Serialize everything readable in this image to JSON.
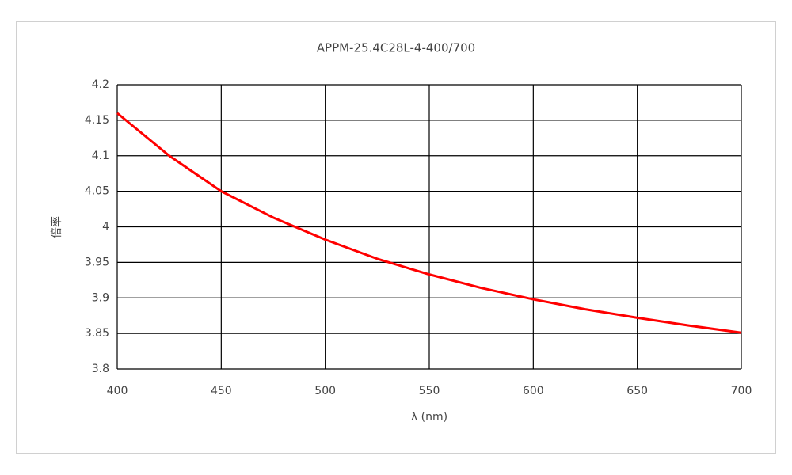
{
  "chart_data": {
    "type": "line",
    "title": "APPM-25.4C28L-4-400/700",
    "x_label": "λ (nm)",
    "y_label": "倍率",
    "x": [
      400,
      425,
      450,
      475,
      500,
      525,
      550,
      575,
      600,
      625,
      650,
      675,
      700
    ],
    "series": [
      {
        "color": "#ff0000",
        "values": [
          4.16,
          4.1,
          4.05,
          4.013,
          3.982,
          3.955,
          3.933,
          3.914,
          3.898,
          3.884,
          3.872,
          3.861,
          3.851
        ]
      }
    ],
    "xlim": [
      400,
      700
    ],
    "xticks": [
      400,
      450,
      500,
      550,
      600,
      650,
      700
    ],
    "ylim": [
      3.8,
      4.2
    ],
    "yticks": [
      3.8,
      3.85,
      3.9,
      3.95,
      4,
      4.05,
      4.1,
      4.15,
      4.2
    ],
    "grid": true
  }
}
